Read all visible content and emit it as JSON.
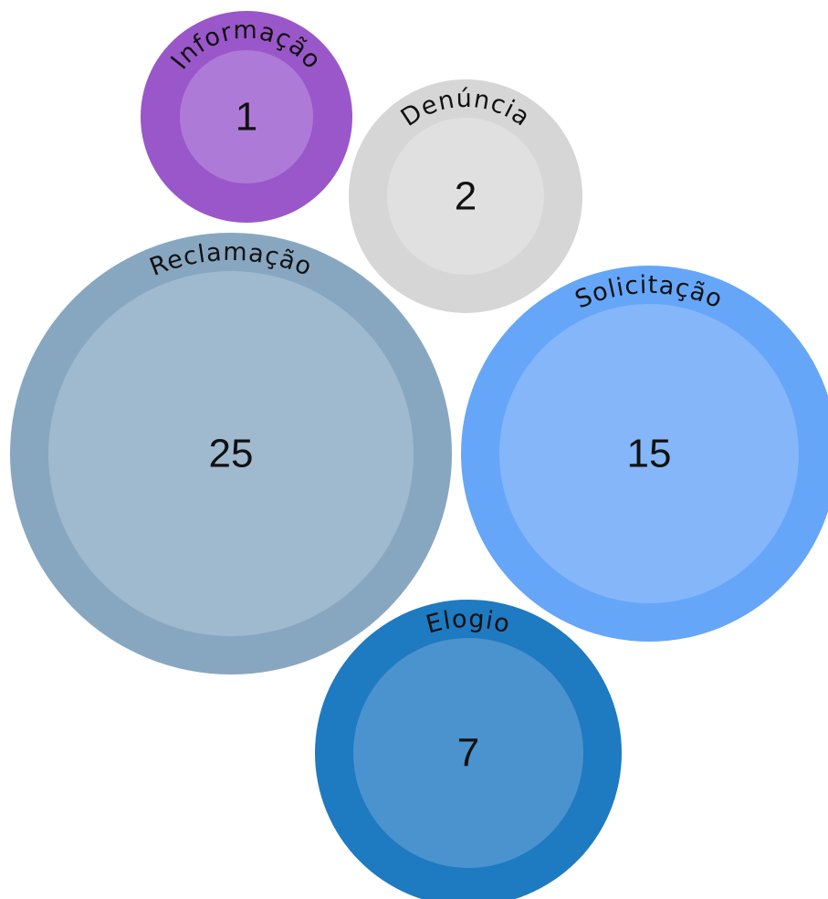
{
  "chart_data": {
    "type": "bubble",
    "title": "",
    "bubbles": [
      {
        "label": "Informação",
        "value": 1,
        "color": "#9a57c9",
        "inner_color": "#ad7bd7"
      },
      {
        "label": "Denúncia",
        "value": 2,
        "color": "#d6d6d6",
        "inner_color": "#e0e0e0"
      },
      {
        "label": "Reclamação",
        "value": 25,
        "color": "#87a7c1",
        "inner_color": "#9fb9ce"
      },
      {
        "label": "Solicitação",
        "value": 15,
        "color": "#65a6f8",
        "inner_color": "#84b6f9"
      },
      {
        "label": "Elogio",
        "value": 7,
        "color": "#1e7ac1",
        "inner_color": "#4a93ce"
      }
    ]
  }
}
